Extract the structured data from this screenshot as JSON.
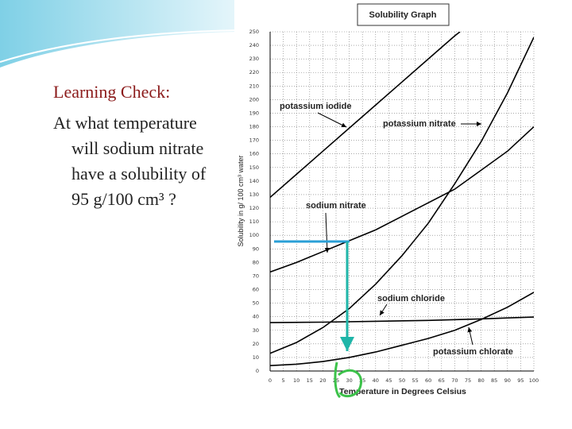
{
  "slide": {
    "heading": "Learning Check:",
    "lines": [
      "At what temperature",
      "will sodium nitrate",
      "have a solubility of",
      "95 g/100 cm³ ?"
    ]
  },
  "chart_data": {
    "type": "line",
    "title": "Solubility Graph",
    "x_label": "Temperature in Degrees Celsius",
    "y_label": "Solubility in g/ 100 cm³ water",
    "xlim": [
      0,
      100
    ],
    "ylim": [
      0,
      250
    ],
    "xticks": [
      0,
      5,
      10,
      15,
      20,
      25,
      30,
      35,
      40,
      45,
      50,
      55,
      60,
      65,
      70,
      75,
      80,
      85,
      90,
      95,
      100
    ],
    "yticks": [
      0,
      10,
      20,
      30,
      40,
      50,
      60,
      70,
      80,
      90,
      100,
      110,
      120,
      130,
      140,
      150,
      160,
      170,
      180,
      190,
      200,
      210,
      220,
      230,
      240,
      250
    ],
    "grid": true,
    "series": [
      {
        "name": "potassium iodide",
        "color": "#000000",
        "x": [
          0,
          10,
          20,
          30,
          40,
          50,
          60,
          70,
          72
        ],
        "values": [
          128,
          145,
          162,
          179,
          196,
          213,
          230,
          247,
          250
        ]
      },
      {
        "name": "potassium nitrate",
        "color": "#000000",
        "x": [
          0,
          10,
          20,
          30,
          40,
          50,
          60,
          70,
          80,
          90,
          100
        ],
        "values": [
          13,
          21,
          32,
          46,
          64,
          85,
          109,
          138,
          169,
          205,
          246
        ]
      },
      {
        "name": "sodium nitrate",
        "color": "#000000",
        "x": [
          0,
          10,
          20,
          30,
          40,
          50,
          60,
          70,
          80,
          90,
          100
        ],
        "values": [
          73,
          80,
          88,
          96,
          104,
          114,
          124,
          134,
          148,
          162,
          180
        ]
      },
      {
        "name": "sodium chloride",
        "color": "#000000",
        "x": [
          0,
          20,
          40,
          60,
          80,
          100
        ],
        "values": [
          35.7,
          36,
          36.6,
          37.3,
          38.4,
          39.8
        ]
      },
      {
        "name": "potassium chlorate",
        "color": "#000000",
        "x": [
          0,
          10,
          20,
          30,
          40,
          50,
          60,
          70,
          80,
          90,
          100
        ],
        "values": [
          4,
          5,
          7,
          10,
          14,
          19,
          24,
          30,
          38,
          47,
          58
        ]
      }
    ]
  }
}
